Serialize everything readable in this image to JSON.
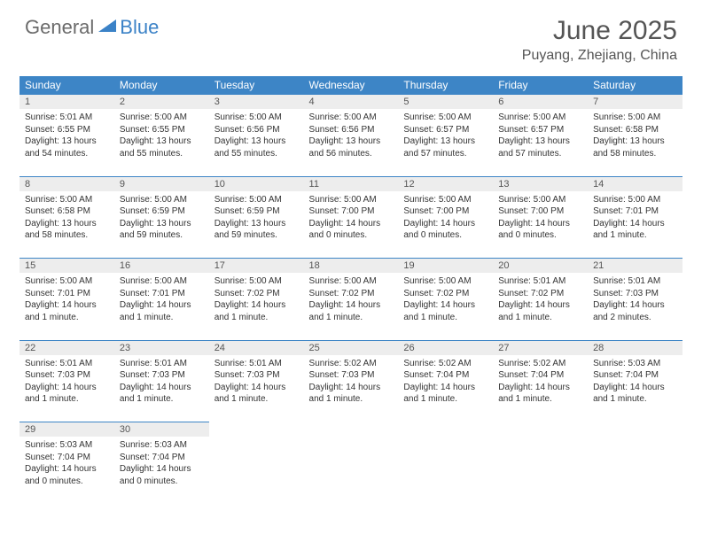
{
  "logo": {
    "general": "General",
    "blue": "Blue"
  },
  "title": "June 2025",
  "location": "Puyang, Zhejiang, China",
  "colors": {
    "header_bg": "#3d85c6",
    "header_text": "#ffffff",
    "daynum_bg": "#ededed",
    "text": "#333333",
    "logo_gray": "#6b6b6b",
    "logo_blue": "#3b82c7",
    "title_color": "#555555"
  },
  "weekdays": [
    "Sunday",
    "Monday",
    "Tuesday",
    "Wednesday",
    "Thursday",
    "Friday",
    "Saturday"
  ],
  "labels": {
    "sunrise": "Sunrise:",
    "sunset": "Sunset:",
    "daylight": "Daylight:"
  },
  "days": [
    {
      "n": 1,
      "sr": "5:01 AM",
      "ss": "6:55 PM",
      "dl": "13 hours and 54 minutes."
    },
    {
      "n": 2,
      "sr": "5:00 AM",
      "ss": "6:55 PM",
      "dl": "13 hours and 55 minutes."
    },
    {
      "n": 3,
      "sr": "5:00 AM",
      "ss": "6:56 PM",
      "dl": "13 hours and 55 minutes."
    },
    {
      "n": 4,
      "sr": "5:00 AM",
      "ss": "6:56 PM",
      "dl": "13 hours and 56 minutes."
    },
    {
      "n": 5,
      "sr": "5:00 AM",
      "ss": "6:57 PM",
      "dl": "13 hours and 57 minutes."
    },
    {
      "n": 6,
      "sr": "5:00 AM",
      "ss": "6:57 PM",
      "dl": "13 hours and 57 minutes."
    },
    {
      "n": 7,
      "sr": "5:00 AM",
      "ss": "6:58 PM",
      "dl": "13 hours and 58 minutes."
    },
    {
      "n": 8,
      "sr": "5:00 AM",
      "ss": "6:58 PM",
      "dl": "13 hours and 58 minutes."
    },
    {
      "n": 9,
      "sr": "5:00 AM",
      "ss": "6:59 PM",
      "dl": "13 hours and 59 minutes."
    },
    {
      "n": 10,
      "sr": "5:00 AM",
      "ss": "6:59 PM",
      "dl": "13 hours and 59 minutes."
    },
    {
      "n": 11,
      "sr": "5:00 AM",
      "ss": "7:00 PM",
      "dl": "14 hours and 0 minutes."
    },
    {
      "n": 12,
      "sr": "5:00 AM",
      "ss": "7:00 PM",
      "dl": "14 hours and 0 minutes."
    },
    {
      "n": 13,
      "sr": "5:00 AM",
      "ss": "7:00 PM",
      "dl": "14 hours and 0 minutes."
    },
    {
      "n": 14,
      "sr": "5:00 AM",
      "ss": "7:01 PM",
      "dl": "14 hours and 1 minute."
    },
    {
      "n": 15,
      "sr": "5:00 AM",
      "ss": "7:01 PM",
      "dl": "14 hours and 1 minute."
    },
    {
      "n": 16,
      "sr": "5:00 AM",
      "ss": "7:01 PM",
      "dl": "14 hours and 1 minute."
    },
    {
      "n": 17,
      "sr": "5:00 AM",
      "ss": "7:02 PM",
      "dl": "14 hours and 1 minute."
    },
    {
      "n": 18,
      "sr": "5:00 AM",
      "ss": "7:02 PM",
      "dl": "14 hours and 1 minute."
    },
    {
      "n": 19,
      "sr": "5:00 AM",
      "ss": "7:02 PM",
      "dl": "14 hours and 1 minute."
    },
    {
      "n": 20,
      "sr": "5:01 AM",
      "ss": "7:02 PM",
      "dl": "14 hours and 1 minute."
    },
    {
      "n": 21,
      "sr": "5:01 AM",
      "ss": "7:03 PM",
      "dl": "14 hours and 2 minutes."
    },
    {
      "n": 22,
      "sr": "5:01 AM",
      "ss": "7:03 PM",
      "dl": "14 hours and 1 minute."
    },
    {
      "n": 23,
      "sr": "5:01 AM",
      "ss": "7:03 PM",
      "dl": "14 hours and 1 minute."
    },
    {
      "n": 24,
      "sr": "5:01 AM",
      "ss": "7:03 PM",
      "dl": "14 hours and 1 minute."
    },
    {
      "n": 25,
      "sr": "5:02 AM",
      "ss": "7:03 PM",
      "dl": "14 hours and 1 minute."
    },
    {
      "n": 26,
      "sr": "5:02 AM",
      "ss": "7:04 PM",
      "dl": "14 hours and 1 minute."
    },
    {
      "n": 27,
      "sr": "5:02 AM",
      "ss": "7:04 PM",
      "dl": "14 hours and 1 minute."
    },
    {
      "n": 28,
      "sr": "5:03 AM",
      "ss": "7:04 PM",
      "dl": "14 hours and 1 minute."
    },
    {
      "n": 29,
      "sr": "5:03 AM",
      "ss": "7:04 PM",
      "dl": "14 hours and 0 minutes."
    },
    {
      "n": 30,
      "sr": "5:03 AM",
      "ss": "7:04 PM",
      "dl": "14 hours and 0 minutes."
    }
  ],
  "start_weekday": 0,
  "typography": {
    "title_fontsize": 30,
    "location_fontsize": 16,
    "weekday_fontsize": 12,
    "cell_fontsize": 10
  }
}
